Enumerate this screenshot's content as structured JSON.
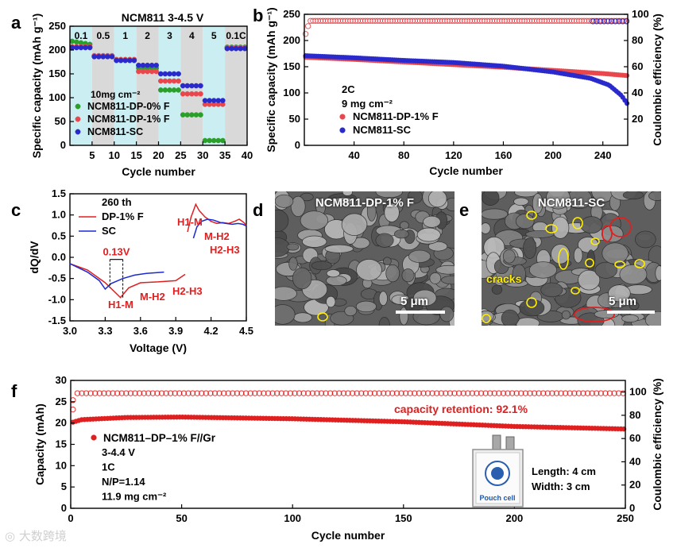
{
  "panel_letters": [
    "a",
    "b",
    "c",
    "d",
    "e",
    "f"
  ],
  "chart_data": [
    {
      "id": "a",
      "type": "scatter",
      "title": "NCM811   3-4.5 V",
      "xlabel": "Cycle number",
      "ylabel": "Specific capacity (mAh g⁻¹)",
      "xlim": [
        0,
        40
      ],
      "ylim": [
        0,
        250
      ],
      "xticks": [
        5,
        10,
        15,
        20,
        25,
        30,
        35,
        40
      ],
      "yticks": [
        0,
        50,
        100,
        150,
        200,
        250
      ],
      "rate_labels": [
        "0.1",
        "0.5",
        "1",
        "2",
        "3",
        "4",
        "5",
        "0.1C"
      ],
      "loading": "10mg cm⁻²",
      "series": [
        {
          "name": "NCM811-DP-0% F",
          "color": "#2aa02a",
          "segments": [
            212,
            188,
            180,
            162,
            116,
            64,
            10,
            206
          ]
        },
        {
          "name": "NCM811-DP-1% F",
          "color": "#e8474d",
          "segments": [
            207,
            188,
            180,
            155,
            135,
            108,
            86,
            205
          ]
        },
        {
          "name": "NCM811-SC",
          "color": "#2a2acc",
          "segments": [
            205,
            186,
            178,
            168,
            150,
            125,
            94,
            203
          ]
        }
      ]
    },
    {
      "id": "b",
      "type": "scatter",
      "xlabel": "Cycle number",
      "ylabel": "Specific capacity (mAh g⁻¹)",
      "ylabel_right": "Coulombic efficiency (%)",
      "xlim": [
        0,
        260
      ],
      "ylim": [
        0,
        250
      ],
      "ylim_right": [
        0,
        100
      ],
      "xticks": [
        40,
        80,
        120,
        160,
        200,
        240
      ],
      "yticks": [
        0,
        50,
        100,
        150,
        200,
        250
      ],
      "yticks_right": [
        20,
        40,
        60,
        80,
        100
      ],
      "rate": "2C",
      "loading": "9 mg cm⁻²",
      "series": [
        {
          "name": "NCM811-DP-1% F",
          "color": "#e8474d",
          "x": [
            1,
            40,
            80,
            120,
            160,
            200,
            240,
            260
          ],
          "y": [
            168,
            164,
            159,
            154,
            149,
            143,
            137,
            133
          ]
        },
        {
          "name": "NCM811-SC",
          "color": "#2a2acc",
          "x": [
            1,
            40,
            80,
            120,
            160,
            200,
            230,
            245,
            255,
            260
          ],
          "y": [
            171,
            167,
            162,
            158,
            151,
            140,
            128,
            115,
            95,
            78
          ]
        }
      ],
      "ce_value": 95
    },
    {
      "id": "c",
      "type": "line",
      "xlabel": "Voltage (V)",
      "ylabel": "dQ/dV",
      "xlim": [
        3.0,
        4.5
      ],
      "ylim": [
        -1.5,
        1.5
      ],
      "xticks": [
        "3.0",
        "3.3",
        "3.6",
        "3.9",
        "4.2",
        "4.5"
      ],
      "yticks": [
        "-1.5",
        "-1.0",
        "-0.5",
        "0.0",
        "0.5",
        "1.0",
        "1.5"
      ],
      "cycle_label": "260 th",
      "shift_label": "0.13V",
      "peak_labels": [
        "H1-M",
        "M-H2",
        "H2-H3"
      ],
      "series": [
        {
          "name": "DP-1% F",
          "color": "#e02020",
          "charge_x": [
            4.0,
            4.03,
            4.07,
            4.1,
            4.15,
            4.2,
            4.25,
            4.3,
            4.35,
            4.4,
            4.44,
            4.48,
            4.5
          ],
          "charge_y": [
            0.6,
            0.95,
            1.25,
            1.1,
            0.95,
            0.85,
            0.8,
            0.82,
            0.8,
            0.85,
            0.9,
            0.82,
            0.75
          ],
          "discharge_x": [
            3.0,
            3.15,
            3.3,
            3.43,
            3.5,
            3.6,
            3.75,
            3.9,
            3.98
          ],
          "discharge_y": [
            -0.15,
            -0.3,
            -0.6,
            -0.95,
            -0.72,
            -0.6,
            -0.58,
            -0.55,
            -0.4
          ]
        },
        {
          "name": "SC",
          "color": "#1a2ad0",
          "charge_x": [
            4.05,
            4.08,
            4.12,
            4.17,
            4.22,
            4.28,
            4.33,
            4.38,
            4.43,
            4.47,
            4.5
          ],
          "charge_y": [
            0.45,
            0.72,
            0.85,
            0.9,
            0.88,
            0.82,
            0.8,
            0.78,
            0.8,
            0.78,
            0.74
          ],
          "discharge_x": [
            3.0,
            3.15,
            3.25,
            3.3,
            3.35,
            3.45,
            3.55,
            3.65,
            3.8
          ],
          "discharge_y": [
            -0.15,
            -0.35,
            -0.55,
            -0.75,
            -0.62,
            -0.5,
            -0.42,
            -0.38,
            -0.35
          ]
        }
      ]
    },
    {
      "id": "f",
      "type": "scatter",
      "xlabel": "Cycle number",
      "ylabel": "Capacity (mAh)",
      "ylabel_right": "Coulombic efficiency (%)",
      "xlim": [
        0,
        250
      ],
      "ylim": [
        0,
        30
      ],
      "ylim_right": [
        0,
        110
      ],
      "xticks": [
        0,
        50,
        100,
        150,
        200,
        250
      ],
      "yticks": [
        0,
        5,
        10,
        15,
        20,
        25,
        30
      ],
      "yticks_right": [
        0,
        20,
        40,
        60,
        80,
        100
      ],
      "retention": "capacity retention: 92.1%",
      "legend": "NCM811–DP–1% F//Gr",
      "conditions": [
        "3-4.4 V",
        "1C",
        "N/P=1.14",
        "11.9 mg cm⁻²"
      ],
      "cell_dims": [
        "Length:  4 cm",
        "Width:  3 cm"
      ],
      "pouch_label": "Pouch cell",
      "series": [
        {
          "name": "capacity",
          "color": "#e02020",
          "x": [
            1,
            5,
            25,
            50,
            100,
            150,
            200,
            250
          ],
          "y": [
            20.2,
            20.8,
            21.3,
            21.4,
            21.0,
            20.3,
            19.2,
            18.6
          ]
        },
        {
          "name": "coulombic efficiency",
          "color": "#e02020",
          "value": 99
        }
      ]
    }
  ],
  "sem_images": [
    {
      "id": "d",
      "label": "NCM811-DP-1% F",
      "scale": "5 μm"
    },
    {
      "id": "e",
      "label": "NCM811-SC",
      "scale": "5 μm",
      "annotation": "cracks"
    }
  ],
  "watermark": "大数跨境"
}
